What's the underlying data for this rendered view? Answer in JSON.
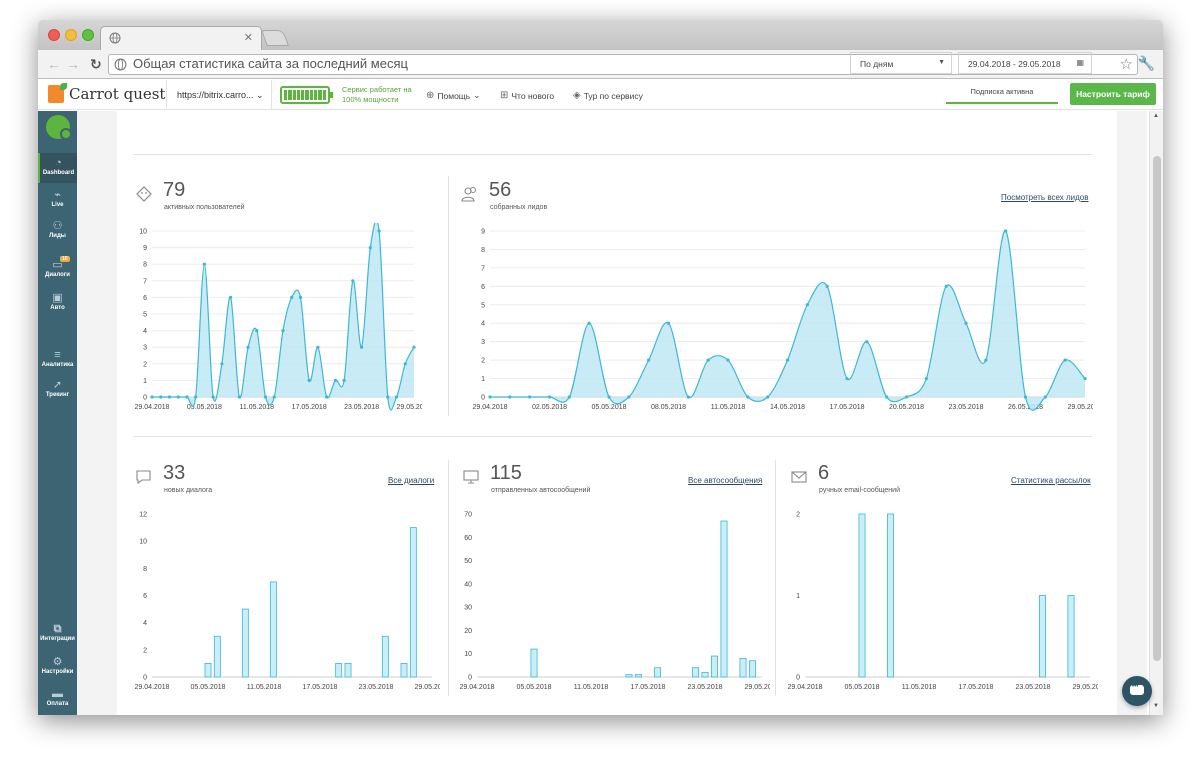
{
  "browser": {
    "tab_title": "",
    "url": ""
  },
  "header": {
    "logo_text": "Carrot quest",
    "site_selector": "https://bitrix.carro...",
    "service_status_line1": "Сервис работает на",
    "service_status_line2": "100% мощности",
    "menu": [
      {
        "label": "Помощь",
        "icon": "globe-icon"
      },
      {
        "label": "Что нового",
        "icon": "gift-icon"
      },
      {
        "label": "Тур по сервису",
        "icon": "graduation-cap-icon"
      }
    ],
    "subscription_status": "Подписка активна",
    "tariff_button": "Настроить тариф",
    "accent_color": "#5bb74a"
  },
  "sidebar": {
    "items": [
      {
        "label": "Dashboard",
        "icon": "gauge-icon",
        "active": true
      },
      {
        "label": "Live",
        "icon": "pulse-icon"
      },
      {
        "label": "Лиды",
        "icon": "users-icon"
      },
      {
        "label": "Диалоги",
        "icon": "chat-icon",
        "badge": "10"
      },
      {
        "label": "Авто",
        "icon": "auto-message-icon"
      },
      {
        "label": "Аналитика",
        "icon": "analytics-icon"
      },
      {
        "label": "Трекинг",
        "icon": "cursor-icon"
      },
      {
        "label": "Интеграции",
        "icon": "puzzle-icon"
      },
      {
        "label": "Настройки",
        "icon": "gear-icon"
      },
      {
        "label": "Оплата",
        "icon": "card-icon"
      }
    ]
  },
  "dashboard": {
    "title": "Общая статистика сайта за последний месяц",
    "period_select": "По дням",
    "date_range": "29.04.2018 - 29.05.2018",
    "series_color": "#3cb8d6",
    "stats": [
      {
        "value": "79",
        "label": "активных пользователей",
        "icon": "ghost-icon"
      },
      {
        "value": "56",
        "label": "собранных лидов",
        "icon": "users-icon",
        "link": "Посмотреть всех лидов"
      },
      {
        "value": "33",
        "label": "новых диалога",
        "icon": "chat-icon",
        "link": "Все диалоги"
      },
      {
        "value": "115",
        "label": "отправленных автосообщений",
        "icon": "monitor-icon",
        "link": "Все автосообщения"
      },
      {
        "value": "6",
        "label": "ручных email-сообщений",
        "icon": "envelope-icon",
        "link": "Статистика рассылок"
      }
    ]
  },
  "chart_data": [
    {
      "type": "area",
      "title": "активных пользователей",
      "x_tick_labels": [
        "29.04.2018",
        "05.05.2018",
        "11.05.2018",
        "17.05.2018",
        "23.05.2018",
        "29.05.2018"
      ],
      "y_ticks": [
        0,
        1,
        2,
        3,
        4,
        5,
        6,
        7,
        8,
        9,
        10
      ],
      "ylim": [
        0,
        10
      ],
      "values": [
        0,
        0,
        0,
        0,
        0,
        0,
        8,
        0,
        2,
        6,
        0,
        3,
        4,
        0,
        0,
        4,
        6,
        6,
        1,
        3,
        0,
        1,
        1,
        7,
        3,
        9,
        10,
        0,
        0,
        2,
        3
      ],
      "grid": true
    },
    {
      "type": "area",
      "title": "собранных лидов",
      "x_tick_labels": [
        "29.04.2018",
        "02.05.2018",
        "05.05.2018",
        "08.05.2018",
        "11.05.2018",
        "14.05.2018",
        "17.05.2018",
        "20.05.2018",
        "23.05.2018",
        "26.05.2018",
        "29.05.2018"
      ],
      "y_ticks": [
        0,
        1,
        2,
        3,
        4,
        5,
        6,
        7,
        8,
        9
      ],
      "ylim": [
        0,
        9
      ],
      "values": [
        0,
        0,
        0,
        0,
        0,
        4,
        0,
        0,
        2,
        4,
        0,
        2,
        2,
        0,
        0,
        2,
        5,
        6,
        1,
        3,
        0,
        0,
        1,
        6,
        4,
        2,
        9,
        0,
        0,
        2,
        1
      ],
      "grid": true
    },
    {
      "type": "bar",
      "title": "новых диалога",
      "x_tick_labels": [
        "29.04.2018",
        "05.05.2018",
        "11.05.2018",
        "17.05.2018",
        "23.05.2018",
        "29.05.2018"
      ],
      "y_ticks": [
        0,
        2,
        4,
        6,
        8,
        10,
        12
      ],
      "ylim": [
        0,
        12
      ],
      "values": [
        0,
        0,
        0,
        0,
        0,
        0,
        1,
        3,
        0,
        0,
        5,
        0,
        0,
        7,
        0,
        0,
        0,
        0,
        0,
        0,
        1,
        1,
        0,
        0,
        0,
        3,
        0,
        1,
        11,
        0,
        0
      ],
      "grid": false
    },
    {
      "type": "bar",
      "title": "отправленных автосообщений",
      "x_tick_labels": [
        "29.04.2018",
        "05.05.2018",
        "11.05.2018",
        "17.05.2018",
        "23.05.2018",
        "29.05.2018"
      ],
      "y_ticks": [
        0,
        10,
        20,
        30,
        40,
        50,
        60,
        70
      ],
      "ylim": [
        0,
        70
      ],
      "values": [
        0,
        0,
        0,
        0,
        0,
        0,
        12,
        0,
        0,
        0,
        0,
        0,
        0,
        0,
        0,
        0,
        1,
        1,
        0,
        4,
        0,
        0,
        0,
        4,
        2,
        9,
        67,
        0,
        8,
        7,
        0
      ],
      "grid": false
    },
    {
      "type": "bar",
      "title": "ручных email-сообщений",
      "x_tick_labels": [
        "29.04.2018",
        "05.05.2018",
        "11.05.2018",
        "17.05.2018",
        "23.05.2018",
        "29.05.2018"
      ],
      "y_ticks": [
        0,
        1,
        2
      ],
      "ylim": [
        0,
        2
      ],
      "values": [
        0,
        0,
        0,
        0,
        0,
        0,
        2,
        0,
        0,
        2,
        0,
        0,
        0,
        0,
        0,
        0,
        0,
        0,
        0,
        0,
        0,
        0,
        0,
        0,
        0,
        1,
        0,
        0,
        1,
        0,
        0
      ],
      "grid": false
    }
  ]
}
